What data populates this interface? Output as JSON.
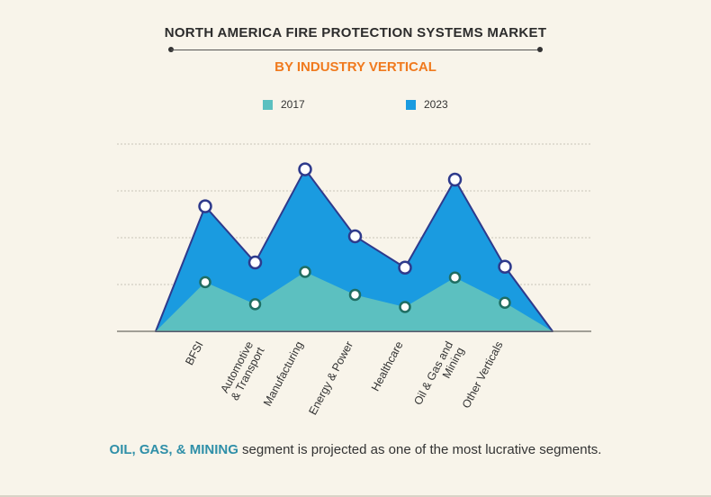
{
  "header": {
    "title": "NORTH AMERICA FIRE PROTECTION SYSTEMS MARKET",
    "subtitle": "BY INDUSTRY VERTICAL"
  },
  "footer": {
    "highlight": "OIL, GAS, & MINING",
    "text": " segment is projected as one of the most lucrative segments."
  },
  "colors": {
    "series_2017": "#5cc0c0",
    "series_2023": "#1a9be0",
    "outline": "#2e3a8c",
    "title": "#2c2c2c",
    "subtitle": "#f07a1e",
    "highlight": "#2f8fa8"
  },
  "chart_data": {
    "type": "area",
    "categories": [
      "BFSI",
      "Automotive & Transport",
      "Manufacturing",
      "Energy & Power",
      "Healthcare",
      "Oil & Gas and Mining",
      "Other Verticals"
    ],
    "category_lines": [
      [
        "BFSI"
      ],
      [
        "Automotive",
        "& Transport"
      ],
      [
        "Manufacturing"
      ],
      [
        "Energy & Power"
      ],
      [
        "Healthcare"
      ],
      [
        "Oil & Gas and",
        "Mining"
      ],
      [
        "Other Verticals"
      ]
    ],
    "series": [
      {
        "name": "2017",
        "values": [
          1.05,
          0.58,
          1.27,
          0.78,
          0.52,
          1.15,
          0.61
        ]
      },
      {
        "name": "2023",
        "values": [
          2.67,
          1.47,
          3.46,
          2.03,
          1.36,
          3.24,
          1.38
        ]
      }
    ],
    "ylim": [
      0,
      4
    ],
    "grid": true,
    "legend_position": "top"
  }
}
